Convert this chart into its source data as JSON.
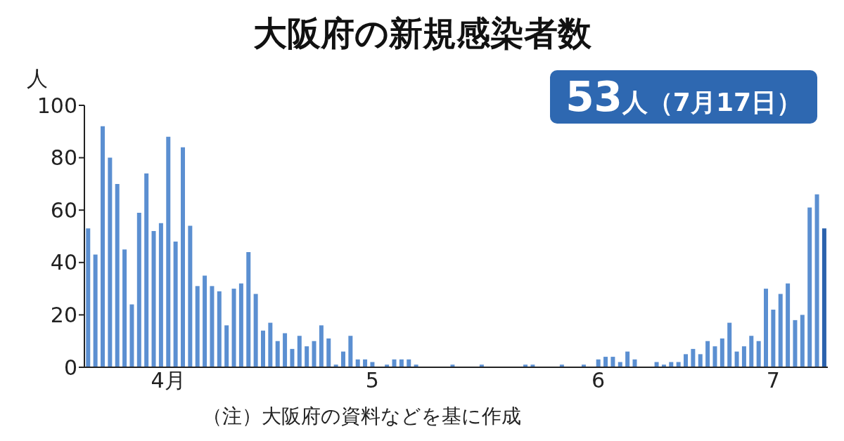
{
  "chart_data": {
    "type": "bar",
    "title": "大阪府の新規感染者数",
    "ylabel": "人",
    "annotations": [
      "53人（7月17日）",
      "（注）大阪府の資料などを基に作成"
    ],
    "categories": [
      null,
      null,
      null,
      null,
      null,
      null,
      null,
      null,
      null,
      null,
      null,
      "4月",
      null,
      null,
      null,
      null,
      null,
      null,
      null,
      null,
      null,
      null,
      null,
      null,
      null,
      null,
      null,
      null,
      null,
      null,
      null,
      null,
      null,
      null,
      null,
      null,
      null,
      null,
      null,
      "5",
      null,
      null,
      null,
      null,
      null,
      null,
      null,
      null,
      null,
      null,
      null,
      null,
      null,
      null,
      null,
      null,
      null,
      null,
      null,
      null,
      null,
      null,
      null,
      null,
      null,
      null,
      null,
      null,
      null,
      null,
      "6",
      null,
      null,
      null,
      null,
      null,
      null,
      null,
      null,
      null,
      null,
      null,
      null,
      null,
      null,
      null,
      null,
      null,
      null,
      null,
      null,
      null,
      null,
      null,
      "7",
      null,
      null,
      null,
      null,
      null,
      null,
      null
    ],
    "values": [
      53,
      43,
      92,
      80,
      70,
      45,
      24,
      59,
      74,
      52,
      55,
      88,
      48,
      84,
      54,
      31,
      35,
      31,
      29,
      16,
      30,
      32,
      44,
      28,
      14,
      17,
      10,
      13,
      7,
      12,
      8,
      10,
      16,
      11,
      1,
      6,
      12,
      3,
      3,
      2,
      0,
      1,
      3,
      3,
      3,
      1,
      0,
      0,
      0,
      0,
      1,
      0,
      0,
      0,
      1,
      0,
      0,
      0,
      0,
      0,
      1,
      1,
      0,
      0,
      0,
      1,
      0,
      0,
      1,
      0,
      3,
      4,
      4,
      2,
      6,
      3,
      0,
      0,
      2,
      1,
      2,
      2,
      5,
      7,
      5,
      10,
      8,
      11,
      17,
      6,
      8,
      12,
      10,
      30,
      22,
      28,
      32,
      18,
      20,
      61,
      66,
      53
    ],
    "colors": [
      "#5b8fd1",
      "#5b8fd1",
      "#5b8fd1",
      "#5b8fd1",
      "#5b8fd1",
      "#5b8fd1",
      "#5b8fd1",
      "#5b8fd1",
      "#5b8fd1",
      "#5b8fd1",
      "#5b8fd1",
      "#5b8fd1",
      "#5b8fd1",
      "#5b8fd1",
      "#5b8fd1",
      "#5b8fd1",
      "#5b8fd1",
      "#5b8fd1",
      "#5b8fd1",
      "#5b8fd1",
      "#5b8fd1",
      "#5b8fd1",
      "#5b8fd1",
      "#5b8fd1",
      "#5b8fd1",
      "#5b8fd1",
      "#5b8fd1",
      "#5b8fd1",
      "#5b8fd1",
      "#5b8fd1",
      "#5b8fd1",
      "#5b8fd1",
      "#5b8fd1",
      "#5b8fd1",
      "#5b8fd1",
      "#5b8fd1",
      "#5b8fd1",
      "#5b8fd1",
      "#5b8fd1",
      "#5b8fd1",
      "#5b8fd1",
      "#5b8fd1",
      "#5b8fd1",
      "#5b8fd1",
      "#5b8fd1",
      "#5b8fd1",
      "#5b8fd1",
      "#5b8fd1",
      "#5b8fd1",
      "#5b8fd1",
      "#5b8fd1",
      "#5b8fd1",
      "#5b8fd1",
      "#5b8fd1",
      "#5b8fd1",
      "#5b8fd1",
      "#5b8fd1",
      "#5b8fd1",
      "#5b8fd1",
      "#5b8fd1",
      "#5b8fd1",
      "#5b8fd1",
      "#5b8fd1",
      "#5b8fd1",
      "#5b8fd1",
      "#5b8fd1",
      "#5b8fd1",
      "#5b8fd1",
      "#5b8fd1",
      "#5b8fd1",
      "#5b8fd1",
      "#5b8fd1",
      "#5b8fd1",
      "#5b8fd1",
      "#5b8fd1",
      "#5b8fd1",
      "#5b8fd1",
      "#5b8fd1",
      "#5b8fd1",
      "#5b8fd1",
      "#5b8fd1",
      "#5b8fd1",
      "#5b8fd1",
      "#5b8fd1",
      "#5b8fd1",
      "#5b8fd1",
      "#5b8fd1",
      "#5b8fd1",
      "#5b8fd1",
      "#5b8fd1",
      "#5b8fd1",
      "#5b8fd1",
      "#5b8fd1",
      "#5b8fd1",
      "#5b8fd1",
      "#5b8fd1",
      "#5b8fd1",
      "#5b8fd1",
      "#5b8fd1",
      "#5b8fd1",
      "#5b8fd1",
      "#2b62ad"
    ],
    "ylim": [
      0,
      100
    ],
    "yticks": [
      0,
      20,
      40,
      60,
      80,
      100
    ],
    "grid": false
  }
}
